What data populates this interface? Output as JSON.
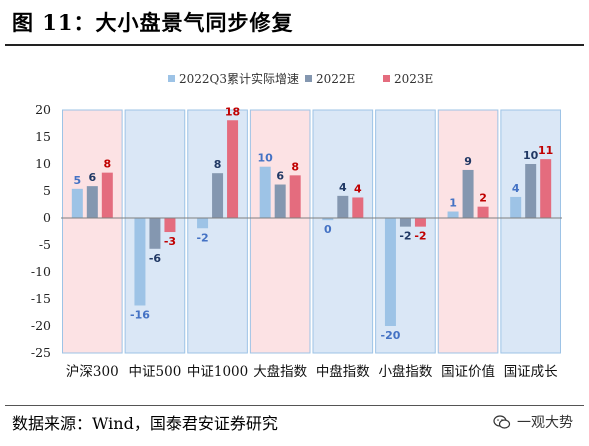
{
  "title": "图 11：大小盘景气同步修复",
  "source": "数据来源：Wind，国泰君安证券研究",
  "watermark": "一观大势",
  "watermark_icon": "wechat-icon",
  "colors": {
    "s2022Q3": "#9DC3E6",
    "s2022E": "#8497B0",
    "s2023E": "#E46C7E",
    "label2022Q3": "#4472C4",
    "label2022E": "#203864",
    "label2023E": "#C00000",
    "bandBlue": "#DAE7F6",
    "bandPink": "#FCE2E4",
    "bandBorder": "#9DC3E6"
  },
  "chart_data": {
    "type": "bar",
    "categories": [
      "沪深300",
      "中证500",
      "中证1000",
      "大盘指数",
      "中盘指数",
      "小盘指数",
      "国证价值",
      "国证成长"
    ],
    "band_colors": [
      "pink",
      "blue",
      "blue",
      "pink",
      "blue",
      "blue",
      "pink",
      "blue"
    ],
    "series": [
      {
        "name": "2022Q3累计实际增速",
        "values": [
          5.4,
          -16.2,
          -1.9,
          9.5,
          -0.4,
          -20.0,
          1.2,
          3.9
        ],
        "labels": [
          "5",
          "-16",
          "-2",
          "10",
          "0",
          "-20",
          "1",
          "4"
        ]
      },
      {
        "name": "2022E",
        "values": [
          5.9,
          -5.7,
          8.3,
          6.2,
          4.1,
          -1.6,
          8.9,
          10.0
        ],
        "labels": [
          "6",
          "-6",
          "8",
          "6",
          "4",
          "-2",
          "9",
          "10"
        ]
      },
      {
        "name": "2023E",
        "values": [
          8.4,
          -2.6,
          18.1,
          7.9,
          3.8,
          -1.6,
          2.1,
          10.9
        ],
        "labels": [
          "8",
          "-3",
          "18",
          "8",
          "4",
          "-2",
          "2",
          "11"
        ]
      }
    ],
    "ylim": [
      -25,
      20
    ],
    "yticks": [
      -25,
      -20,
      -15,
      -10,
      -5,
      0,
      5,
      10,
      15,
      20
    ],
    "grid": false,
    "legend_position": "top-center"
  }
}
